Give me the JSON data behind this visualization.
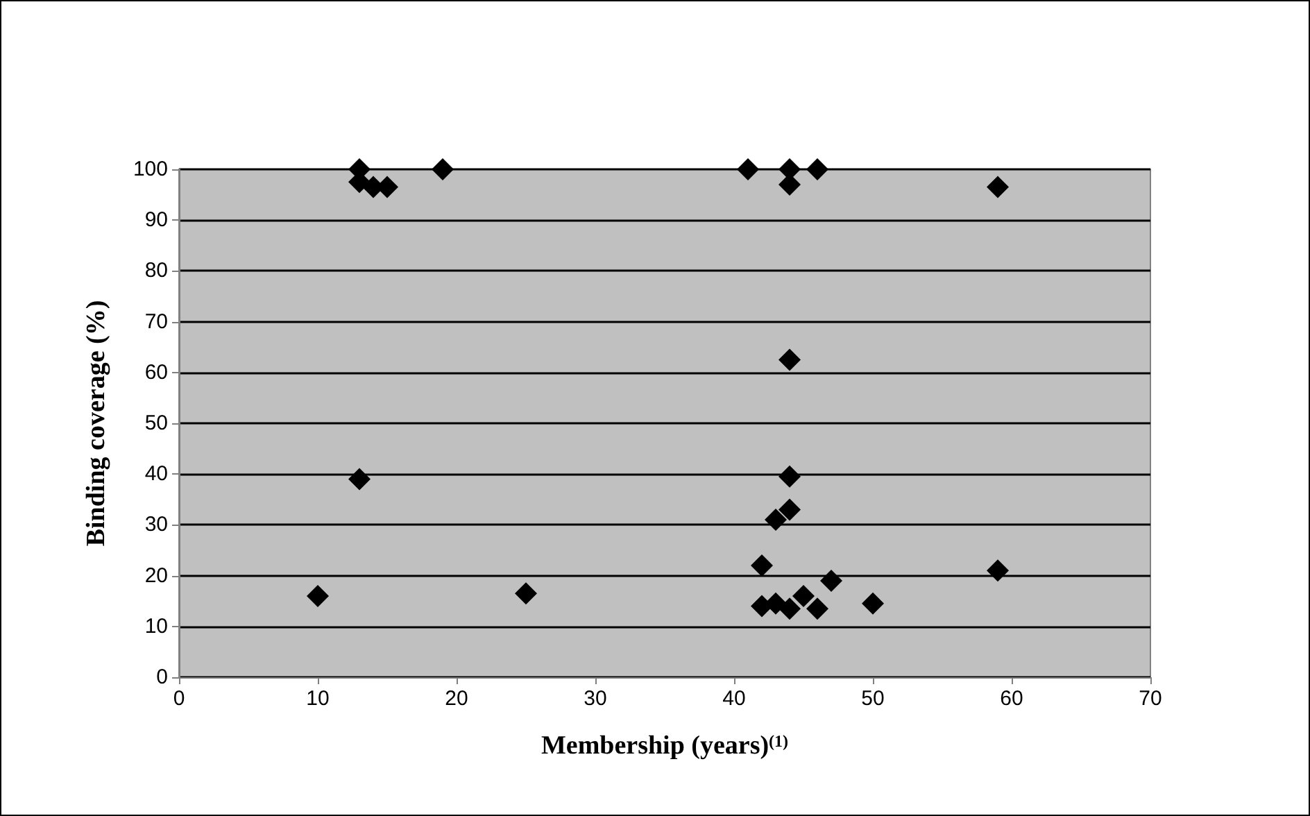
{
  "chart_data": {
    "type": "scatter",
    "xlabel": "Membership (years)$^{(1)}$",
    "ylabel": "Binding coverage (%)",
    "series": [
      {
        "color": "#000000",
        "x": [
          13,
          13,
          14,
          15,
          19,
          41,
          44,
          46,
          44,
          59,
          44,
          13,
          44,
          44,
          43,
          42,
          59,
          47,
          10,
          25,
          45,
          42,
          43,
          44,
          46,
          50
        ],
        "values": [
          100,
          97.5,
          96.5,
          96.5,
          100,
          100,
          100,
          100,
          97,
          96.5,
          62.5,
          39,
          39.5,
          33,
          31,
          22,
          21,
          19,
          16,
          16.5,
          16,
          14,
          14.5,
          13.5,
          13.5,
          14.5
        ]
      }
    ],
    "xlim": [
      0,
      70
    ],
    "xticks": [
      0,
      10,
      20,
      30,
      40,
      50,
      60,
      70
    ],
    "ylim": [
      0,
      100
    ],
    "yticks": [
      0,
      10,
      20,
      30,
      40,
      50,
      60,
      70,
      80,
      90,
      100
    ],
    "grid": "y",
    "marker": "diamond"
  }
}
